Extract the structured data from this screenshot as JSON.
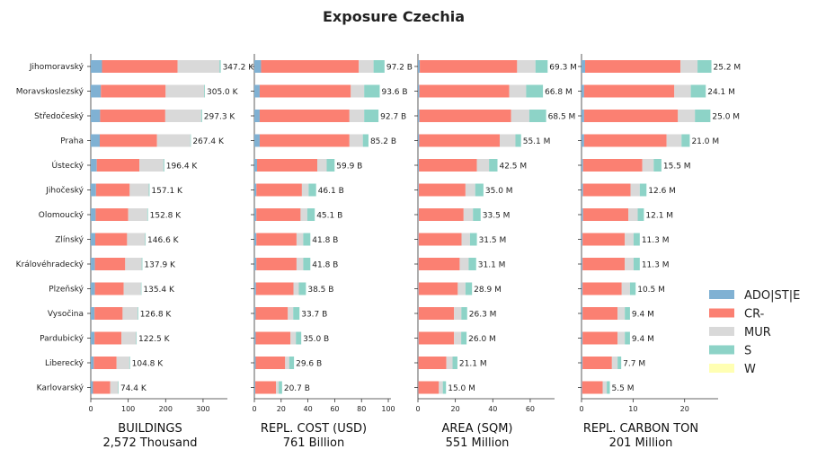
{
  "chart_data": {
    "type": "bar",
    "orientation": "horizontal",
    "stacked": true,
    "title": "Exposure Czechia",
    "categories": [
      "Jihomoravský",
      "Moravskoslezský",
      "Středočeský",
      "Praha",
      "Ústecký",
      "Jihočeský",
      "Olomoucký",
      "Zlínský",
      "Královéhradecký",
      "Plzeňský",
      "Vysočina",
      "Pardubický",
      "Liberecký",
      "Karlovarský"
    ],
    "legend": {
      "position": "right",
      "entries": [
        {
          "name": "ADO|ST|E",
          "color": "#80b1d3"
        },
        {
          "name": "CR-",
          "color": "#fb8072"
        },
        {
          "name": "MUR",
          "color": "#d9d9d9"
        },
        {
          "name": "S",
          "color": "#8dd3c7"
        },
        {
          "name": "W",
          "color": "#ffffb3"
        }
      ]
    },
    "panels": [
      {
        "xlabel": "BUILDINGS",
        "total": "2,572 Thousand",
        "xlim": [
          0,
          365
        ],
        "ticks": [
          0,
          100,
          200,
          300
        ],
        "labels": [
          "347.2 K",
          "305.0 K",
          "297.3 K",
          "267.4 K",
          "196.4 K",
          "157.1 K",
          "152.8 K",
          "146.6 K",
          "137.9 K",
          "135.4 K",
          "126.8 K",
          "122.5 K",
          "104.8 K",
          "74.4 K"
        ],
        "series": [
          {
            "name": "ADO|ST|E",
            "values": [
              30,
              27,
              25,
              24,
              16,
              14,
              13,
              12,
              11,
              11,
              10,
              10,
              8,
              6
            ]
          },
          {
            "name": "CR-",
            "values": [
              202,
              173,
              174,
              153,
              114,
              90,
              87,
              85,
              81,
              77,
              75,
              72,
              61,
              46
            ]
          },
          {
            "name": "MUR",
            "values": [
              112,
              103,
              96,
              89,
              64,
              51,
              51,
              48,
              44,
              46,
              40,
              39,
              34,
              21
            ]
          },
          {
            "name": "S",
            "values": [
              3.2,
              2.0,
              2.3,
              1.4,
              2.4,
              2.1,
              1.8,
              1.6,
              1.9,
              1.4,
              1.8,
              1.5,
              1.8,
              1.4
            ]
          },
          {
            "name": "W",
            "values": [
              0,
              0,
              0,
              0,
              0,
              0,
              0,
              0,
              0,
              0,
              0,
              0,
              0,
              0
            ]
          }
        ]
      },
      {
        "xlabel": "REPL. COST (USD)",
        "total": "761 Billion",
        "xlim": [
          0,
          102
        ],
        "ticks": [
          0,
          20,
          40,
          60,
          80,
          100
        ],
        "labels": [
          "97.2 B",
          "93.6 B",
          "92.7 B",
          "85.2 B",
          "59.9 B",
          "46.1 B",
          "45.1 B",
          "41.8 B",
          "41.8 B",
          "38.5 B",
          "33.7 B",
          "35.0 B",
          "29.6 B",
          "20.7 B"
        ],
        "series": [
          {
            "name": "ADO|ST|E",
            "values": [
              5,
              4,
              4,
              4,
              2,
              1.5,
              1.5,
              1.5,
              1.5,
              1.2,
              1,
              1,
              1,
              0.7
            ]
          },
          {
            "name": "CR-",
            "values": [
              73,
              68,
              67,
              67,
              45,
              34,
              33,
              30,
              30,
              28,
              24,
              26,
              22,
              15.5
            ]
          },
          {
            "name": "MUR",
            "values": [
              11,
              10,
              11,
              10,
              7,
              5,
              5,
              5,
              5,
              4,
              4,
              4,
              3,
              2
            ]
          },
          {
            "name": "S",
            "values": [
              8.2,
              11.6,
              10.7,
              4.2,
              5.9,
              5.6,
              5.6,
              5.3,
              5.3,
              5.3,
              4.7,
              4.0,
              3.6,
              2.5
            ]
          },
          {
            "name": "W",
            "values": [
              0,
              0,
              0,
              0,
              0,
              0,
              0,
              0,
              0,
              0,
              0,
              0,
              0,
              0
            ]
          }
        ]
      },
      {
        "xlabel": "AREA (SQM)",
        "total": "551 Million",
        "xlim": [
          0,
          73
        ],
        "ticks": [
          0,
          20,
          40,
          60
        ],
        "labels": [
          "69.3 M",
          "66.8 M",
          "68.5 M",
          "55.1 M",
          "42.5 M",
          "35.0 M",
          "33.5 M",
          "31.5 M",
          "31.1 M",
          "28.9 M",
          "26.3 M",
          "26.0 M",
          "21.1 M",
          "15.0 M"
        ],
        "series": [
          {
            "name": "ADO|ST|E",
            "values": [
              1,
              0.8,
              0.8,
              0.7,
              0.5,
              0.4,
              0.4,
              0.3,
              0.3,
              0.3,
              0.3,
              0.3,
              0.2,
              0.2
            ]
          },
          {
            "name": "CR-",
            "values": [
              52,
              48,
              49,
              43,
              31,
              25,
              24,
              23,
              22,
              21,
              19,
              19,
              15,
              11
            ]
          },
          {
            "name": "MUR",
            "values": [
              9.8,
              9.0,
              9.7,
              8.4,
              6.5,
              5.2,
              5.0,
              4.5,
              4.8,
              4.1,
              3.9,
              3.8,
              3.3,
              2.1
            ]
          },
          {
            "name": "S",
            "values": [
              6.5,
              9.0,
              9.0,
              3.0,
              4.5,
              4.4,
              4.1,
              3.7,
              4.0,
              3.5,
              3.1,
              2.9,
              2.6,
              1.7
            ]
          },
          {
            "name": "W",
            "values": [
              0,
              0,
              0,
              0,
              0,
              0,
              0,
              0,
              0,
              0,
              0,
              0,
              0,
              0
            ]
          }
        ]
      },
      {
        "xlabel": "REPL. CARBON TON",
        "total": "201 Million",
        "xlim": [
          0,
          26.5
        ],
        "ticks": [
          0,
          10,
          20
        ],
        "labels": [
          "25.2 M",
          "24.1 M",
          "25.0 M",
          "21.0 M",
          "15.5 M",
          "12.6 M",
          "12.1 M",
          "11.3 M",
          "11.3 M",
          "10.5 M",
          "9.4 M",
          "9.4 M",
          "7.7 M",
          "5.5 M"
        ],
        "series": [
          {
            "name": "ADO|ST|E",
            "values": [
              0.7,
              0.5,
              0.5,
              0.5,
              0.3,
              0.3,
              0.3,
              0.2,
              0.2,
              0.2,
              0.2,
              0.2,
              0.2,
              0.1
            ]
          },
          {
            "name": "CR-",
            "values": [
              18.5,
              17.5,
              18.2,
              16.0,
              11.5,
              9.2,
              8.8,
              8.2,
              8.2,
              7.6,
              6.8,
              6.8,
              5.7,
              4.0
            ]
          },
          {
            "name": "MUR",
            "values": [
              3.3,
              3.2,
              3.3,
              2.9,
              2.2,
              1.8,
              1.8,
              1.7,
              1.7,
              1.6,
              1.4,
              1.4,
              1.1,
              0.8
            ]
          },
          {
            "name": "S",
            "values": [
              2.7,
              2.9,
              3.0,
              1.6,
              1.5,
              1.3,
              1.2,
              1.2,
              1.2,
              1.1,
              1.0,
              1.0,
              0.7,
              0.6
            ]
          },
          {
            "name": "W",
            "values": [
              0,
              0,
              0,
              0,
              0,
              0,
              0,
              0,
              0,
              0,
              0,
              0,
              0,
              0
            ]
          }
        ]
      }
    ]
  }
}
